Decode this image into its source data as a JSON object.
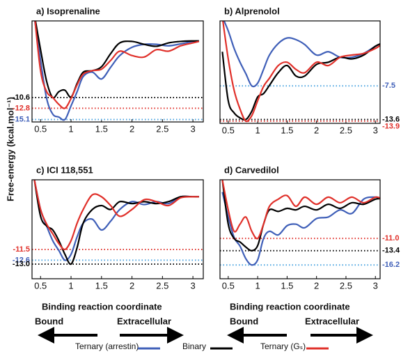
{
  "figure": {
    "ylabel": "Free-energy (kcal.mol⁻¹)",
    "left_notes": {
      "axis": "Binding reaction coordinate",
      "start": "Bound",
      "end": "Extracellular"
    },
    "right_notes": {
      "axis": "Binding reaction coordinate",
      "start": "Bound",
      "end": "Extracellular"
    },
    "legend": [
      {
        "name": "Ternary (arrestin)",
        "color": "#3f5fb8"
      },
      {
        "name": "Binary",
        "color": "#000000"
      },
      {
        "name": "Ternary (Gₛ)",
        "color": "#e0302a"
      }
    ]
  },
  "chart_data": [
    {
      "type": "line",
      "title": "a) Isoprenaline",
      "xlim": [
        0.36,
        3.17
      ],
      "ylim": [
        -15.6,
        5.1
      ],
      "xticks": [
        0.5,
        1,
        1.5,
        2,
        2.5,
        3
      ],
      "x": [
        0.4,
        0.5,
        0.6,
        0.7,
        0.8,
        0.9,
        1.0,
        1.1,
        1.2,
        1.35,
        1.5,
        1.65,
        1.8,
        2.0,
        2.2,
        2.4,
        2.6,
        2.8,
        3.0,
        3.1
      ],
      "series": [
        {
          "color": "#3f5fb8",
          "values": [
            5.6,
            -3.0,
            -10.8,
            -14.0,
            -14.6,
            -15.1,
            -12.3,
            -9.4,
            -6.3,
            -5.4,
            -6.8,
            -4.4,
            -2.0,
            -0.3,
            0.3,
            0.3,
            0.0,
            0.4,
            0.9,
            1.0
          ]
        },
        {
          "color": "#000000",
          "values": [
            6.3,
            -0.8,
            -7.3,
            -10.6,
            -9.4,
            -9.1,
            -10.5,
            -7.7,
            -5.4,
            -5.1,
            -4.3,
            -1.6,
            0.6,
            0.9,
            0.3,
            -0.1,
            0.6,
            0.9,
            1.0,
            1.0
          ]
        },
        {
          "color": "#e0302a",
          "values": [
            6.3,
            -5.1,
            -9.4,
            -10.6,
            -12.0,
            -12.8,
            -10.8,
            -8.0,
            -5.8,
            -5.1,
            -4.8,
            -3.0,
            -1.1,
            -2.0,
            -2.3,
            -0.8,
            -1.1,
            0.0,
            0.6,
            0.9
          ]
        }
      ],
      "hlines": [
        {
          "value": -10.6,
          "color": "#000000"
        },
        {
          "value": -12.8,
          "color": "#e0302a"
        },
        {
          "value": -15.1,
          "color": "#4aa3e0",
          "label_color": "#3f5fb8"
        }
      ]
    },
    {
      "type": "line",
      "title": "b) Alprenolol",
      "xlim": [
        0.36,
        3.08
      ],
      "ylim": [
        -14.3,
        4.3
      ],
      "xticks": [
        0.5,
        1,
        1.5,
        2,
        2.5,
        3
      ],
      "x": [
        0.4,
        0.5,
        0.6,
        0.7,
        0.8,
        0.9,
        1.0,
        1.1,
        1.2,
        1.35,
        1.5,
        1.65,
        1.8,
        2.0,
        2.2,
        2.4,
        2.6,
        2.8,
        3.0,
        3.1
      ],
      "series": [
        {
          "color": "#3f5fb8",
          "values": [
            5.0,
            2.5,
            -0.7,
            -3.2,
            -5.3,
            -7.5,
            -7.0,
            -4.5,
            -1.9,
            0.2,
            1.2,
            0.9,
            0.0,
            -1.9,
            -1.3,
            -2.3,
            -2.3,
            -1.6,
            -0.3,
            0.2
          ]
        },
        {
          "color": "#000000",
          "values": [
            -1.3,
            -10.2,
            -12.4,
            -13.3,
            -13.6,
            -12.1,
            -9.5,
            -8.9,
            -7.4,
            -5.1,
            -3.8,
            -5.7,
            -5.7,
            -3.6,
            -3.2,
            -2.3,
            -2.6,
            -1.9,
            -0.3,
            0.2
          ]
        },
        {
          "color": "#e0302a",
          "values": [
            5.0,
            -2.6,
            -8.3,
            -11.7,
            -13.9,
            -12.9,
            -10.2,
            -7.6,
            -6.1,
            -3.8,
            -3.2,
            -4.5,
            -5.1,
            -3.2,
            -3.8,
            -2.3,
            -1.9,
            -1.6,
            -0.7,
            0.0
          ]
        }
      ],
      "hlines": [
        {
          "value": -7.5,
          "color": "#4aa3e0",
          "label_color": "#3f5fb8"
        },
        {
          "value": -13.6,
          "color": "#000000"
        },
        {
          "value": -13.9,
          "color": "#e0302a"
        }
      ]
    },
    {
      "type": "line",
      "title": "c) ICI 118,551",
      "xlim": [
        0.36,
        3.17
      ],
      "ylim": [
        -14.5,
        -4.36
      ],
      "xticks": [
        0.5,
        1,
        1.5,
        2,
        2.5,
        3
      ],
      "x": [
        0.4,
        0.5,
        0.6,
        0.7,
        0.8,
        0.9,
        1.0,
        1.1,
        1.2,
        1.35,
        1.5,
        1.65,
        1.8,
        2.0,
        2.2,
        2.4,
        2.6,
        2.8,
        3.0,
        3.1
      ],
      "series": [
        {
          "color": "#3f5fb8",
          "values": [
            -4.4,
            -7.4,
            -9.1,
            -10.6,
            -11.6,
            -12.6,
            -12.0,
            -10.2,
            -8.8,
            -8.4,
            -9.5,
            -8.6,
            -7.4,
            -6.6,
            -6.9,
            -6.6,
            -6.8,
            -6.1,
            -6.1,
            -6.1
          ]
        },
        {
          "color": "#000000",
          "values": [
            -4.4,
            -8.1,
            -9.1,
            -9.5,
            -10.6,
            -12.0,
            -13.0,
            -11.3,
            -8.8,
            -7.4,
            -7.0,
            -7.4,
            -6.6,
            -6.8,
            -6.6,
            -6.8,
            -6.6,
            -6.1,
            -6.1,
            -6.1
          ]
        },
        {
          "color": "#e0302a",
          "values": [
            -4.4,
            -7.4,
            -8.9,
            -9.9,
            -10.9,
            -11.5,
            -10.6,
            -8.8,
            -7.4,
            -5.9,
            -6.1,
            -7.0,
            -8.1,
            -7.4,
            -6.4,
            -6.6,
            -7.0,
            -6.2,
            -6.1,
            -6.1
          ]
        }
      ],
      "hlines": [
        {
          "value": -11.5,
          "color": "#e0302a"
        },
        {
          "value": -12.6,
          "color": "#4aa3e0",
          "label_color": "#3f5fb8"
        },
        {
          "value": -13,
          "label": "-13.0",
          "color": "#000000"
        }
      ]
    },
    {
      "type": "line",
      "title": "d) Carvedilol",
      "xlim": [
        0.36,
        3.08
      ],
      "ylim": [
        -18.9,
        0.5
      ],
      "xticks": [
        0.5,
        1,
        1.5,
        2,
        2.5,
        3
      ],
      "x": [
        0.4,
        0.5,
        0.6,
        0.7,
        0.8,
        0.9,
        1.0,
        1.1,
        1.2,
        1.35,
        1.5,
        1.65,
        1.8,
        2.0,
        2.2,
        2.4,
        2.6,
        2.8,
        3.0,
        3.1
      ],
      "series": [
        {
          "color": "#3f5fb8",
          "values": [
            -1.9,
            -6.8,
            -10.8,
            -12.5,
            -15.0,
            -16.2,
            -15.2,
            -11.0,
            -9.6,
            -10.3,
            -8.5,
            -8.2,
            -8.9,
            -7.1,
            -6.8,
            -5.4,
            -6.1,
            -3.3,
            -2.9,
            -3.3
          ]
        },
        {
          "color": "#000000",
          "values": [
            0.5,
            -8.2,
            -11.0,
            -11.7,
            -12.7,
            -13.4,
            -12.4,
            -8.2,
            -5.4,
            -5.7,
            -5.1,
            -5.4,
            -4.7,
            -5.4,
            -4.3,
            -5.1,
            -4.0,
            -4.3,
            -3.3,
            -3.2
          ]
        },
        {
          "color": "#e0302a",
          "values": [
            0.5,
            -5.4,
            -9.6,
            -8.2,
            -6.8,
            -9.6,
            -11.0,
            -8.2,
            -4.7,
            -3.3,
            -2.6,
            -4.7,
            -2.9,
            -4.3,
            -2.9,
            -4.0,
            -2.9,
            -4.0,
            -2.9,
            -3.2
          ]
        }
      ],
      "hlines": [
        {
          "value": -11,
          "label": "-11.0",
          "color": "#e0302a"
        },
        {
          "value": -13.4,
          "color": "#000000"
        },
        {
          "value": -16.2,
          "color": "#4aa3e0",
          "label_color": "#3f5fb8"
        }
      ]
    }
  ]
}
